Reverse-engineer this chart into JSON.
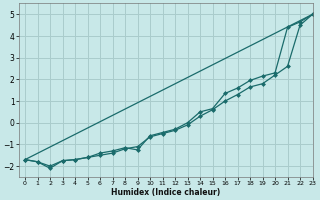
{
  "xlabel": "Humidex (Indice chaleur)",
  "xlim": [
    -0.5,
    23
  ],
  "ylim": [
    -2.5,
    5.5
  ],
  "xticks": [
    0,
    1,
    2,
    3,
    4,
    5,
    6,
    7,
    8,
    9,
    10,
    11,
    12,
    13,
    14,
    15,
    16,
    17,
    18,
    19,
    20,
    21,
    22,
    23
  ],
  "yticks": [
    -2,
    -1,
    0,
    1,
    2,
    3,
    4,
    5
  ],
  "bg_color": "#c8e8e8",
  "grid_color": "#aacccc",
  "line_color": "#1a6b6b",
  "line1_x": [
    0,
    1,
    2,
    3,
    4,
    5,
    6,
    7,
    8,
    9,
    10,
    11,
    12,
    13,
    14,
    15,
    16,
    17,
    18,
    19,
    20,
    21,
    22,
    23
  ],
  "line1_y": [
    -1.7,
    -1.8,
    -2.1,
    -1.75,
    -1.7,
    -1.6,
    -1.5,
    -1.4,
    -1.2,
    -1.1,
    -0.65,
    -0.5,
    -0.35,
    -0.1,
    0.3,
    0.6,
    1.0,
    1.3,
    1.65,
    1.8,
    2.2,
    2.6,
    4.5,
    5.0
  ],
  "line2_x": [
    0,
    1,
    2,
    3,
    4,
    5,
    6,
    7,
    8,
    9,
    10,
    11,
    12,
    13,
    14,
    15,
    16,
    17,
    18,
    19,
    20,
    21,
    22,
    23
  ],
  "line2_y": [
    -1.7,
    -1.8,
    -2.0,
    -1.75,
    -1.7,
    -1.6,
    -1.4,
    -1.3,
    -1.15,
    -1.25,
    -0.6,
    -0.45,
    -0.3,
    0.0,
    0.5,
    0.65,
    1.35,
    1.6,
    1.95,
    2.15,
    2.3,
    4.4,
    4.65,
    5.0
  ],
  "line3_x": [
    0,
    23
  ],
  "line3_y": [
    -1.7,
    5.0
  ]
}
